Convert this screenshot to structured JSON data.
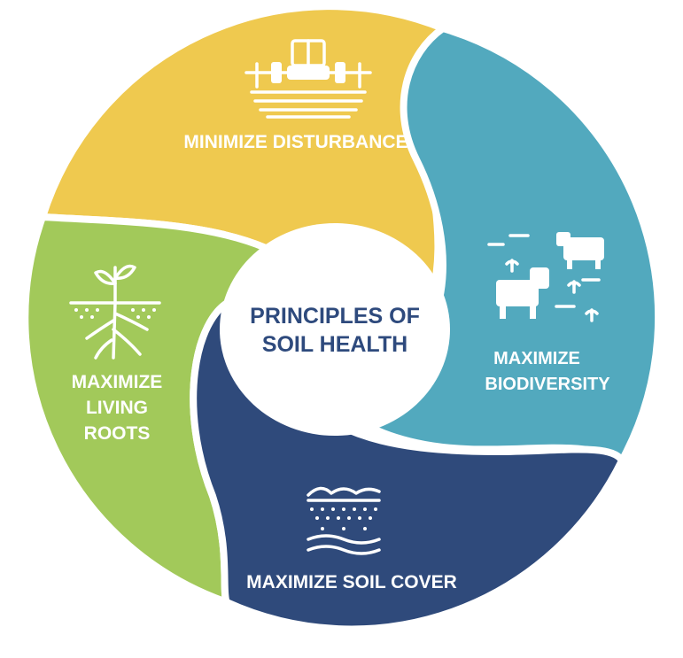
{
  "center": {
    "line1": "PRINCIPLES OF",
    "line2": "SOIL HEALTH"
  },
  "segments": [
    {
      "lines": [
        "MINIMIZE DISTURBANCE"
      ],
      "color": "#efc94f",
      "icon": "tractor-icon"
    },
    {
      "lines": [
        "MAXIMIZE",
        "BIODIVERSITY"
      ],
      "color": "#52a9be",
      "icon": "livestock-plants-icon"
    },
    {
      "lines": [
        "MAXIMIZE SOIL COVER"
      ],
      "color": "#2f4a7b",
      "icon": "soil-cover-icon"
    },
    {
      "lines": [
        "MAXIMIZE",
        "LIVING",
        "ROOTS"
      ],
      "color": "#a2c95a",
      "icon": "sprout-roots-icon"
    }
  ],
  "colors": {
    "center_text": "#2e4a7d",
    "segment_text": "#ffffff",
    "background": "#ffffff"
  }
}
